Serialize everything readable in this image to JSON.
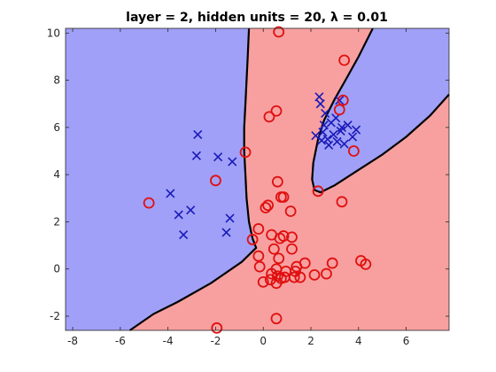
{
  "chart_data": {
    "type": "scatter",
    "title": "layer = 2, hidden units = 20, λ = 0.01",
    "xlabel": "",
    "ylabel": "",
    "xlim": [
      -8.3,
      7.8
    ],
    "ylim": [
      -2.6,
      10.2
    ],
    "xticks": [
      -8,
      -6,
      -4,
      -2,
      0,
      2,
      4,
      6
    ],
    "yticks": [
      -2,
      0,
      2,
      4,
      6,
      8,
      10
    ],
    "grid": false,
    "legend": "none",
    "colors": {
      "region_class_x": "#a0a0f8",
      "region_class_o": "#f8a0a0",
      "marker_x": "#1a1ab8",
      "marker_o": "#e01010",
      "boundary": "#000000"
    },
    "decision_boundary": {
      "left_curve": [
        [
          -0.6,
          10.2
        ],
        [
          -0.65,
          9.0
        ],
        [
          -0.7,
          8.0
        ],
        [
          -0.75,
          7.0
        ],
        [
          -0.8,
          6.0
        ],
        [
          -0.8,
          5.0
        ],
        [
          -0.75,
          4.0
        ],
        [
          -0.7,
          3.0
        ],
        [
          -0.6,
          2.0
        ],
        [
          -0.45,
          1.3
        ],
        [
          -0.3,
          0.9
        ],
        [
          -0.9,
          0.3
        ],
        [
          -2.2,
          -0.6
        ],
        [
          -3.6,
          -1.4
        ],
        [
          -4.6,
          -1.9
        ],
        [
          -5.6,
          -2.6
        ]
      ],
      "right_curve": [
        [
          4.6,
          10.2
        ],
        [
          4.0,
          9.0
        ],
        [
          3.45,
          8.0
        ],
        [
          3.0,
          7.2
        ],
        [
          2.55,
          6.3
        ],
        [
          2.3,
          5.5
        ],
        [
          2.1,
          4.5
        ],
        [
          2.05,
          3.8
        ],
        [
          2.15,
          3.35
        ],
        [
          2.4,
          3.25
        ],
        [
          3.0,
          3.55
        ],
        [
          4.0,
          4.2
        ],
        [
          5.0,
          4.85
        ],
        [
          6.0,
          5.6
        ],
        [
          7.0,
          6.5
        ],
        [
          7.8,
          7.4
        ]
      ]
    },
    "series": [
      {
        "marker": "x",
        "points": [
          [
            -2.75,
            5.7
          ],
          [
            -2.8,
            4.8
          ],
          [
            -1.9,
            4.75
          ],
          [
            -1.3,
            4.55
          ],
          [
            -3.9,
            3.2
          ],
          [
            -3.55,
            2.3
          ],
          [
            -3.05,
            2.5
          ],
          [
            -3.35,
            1.45
          ],
          [
            -1.4,
            2.15
          ],
          [
            -1.55,
            1.55
          ],
          [
            2.35,
            7.3
          ],
          [
            2.4,
            7.0
          ],
          [
            3.2,
            7.15
          ],
          [
            2.6,
            6.6
          ],
          [
            3.05,
            6.4
          ],
          [
            2.85,
            6.2
          ],
          [
            2.55,
            6.1
          ],
          [
            3.3,
            6.0
          ],
          [
            3.55,
            6.1
          ],
          [
            3.9,
            5.9
          ],
          [
            3.75,
            5.6
          ],
          [
            2.2,
            5.65
          ],
          [
            2.45,
            5.45
          ],
          [
            2.7,
            5.5
          ],
          [
            2.95,
            5.7
          ],
          [
            3.1,
            5.4
          ],
          [
            3.4,
            5.3
          ],
          [
            2.5,
            5.8
          ],
          [
            2.75,
            5.25
          ],
          [
            3.25,
            5.85
          ]
        ]
      },
      {
        "marker": "o",
        "points": [
          [
            0.65,
            10.05
          ],
          [
            3.4,
            8.85
          ],
          [
            3.35,
            7.15
          ],
          [
            3.2,
            6.75
          ],
          [
            0.55,
            6.7
          ],
          [
            0.25,
            6.45
          ],
          [
            3.8,
            5.0
          ],
          [
            -0.75,
            4.95
          ],
          [
            0.6,
            3.7
          ],
          [
            -2.0,
            3.75
          ],
          [
            2.3,
            3.3
          ],
          [
            3.3,
            2.85
          ],
          [
            -4.8,
            2.8
          ],
          [
            0.75,
            3.05
          ],
          [
            0.85,
            3.05
          ],
          [
            0.1,
            2.6
          ],
          [
            0.2,
            2.7
          ],
          [
            1.15,
            2.45
          ],
          [
            -0.2,
            1.7
          ],
          [
            0.7,
            1.3
          ],
          [
            0.35,
            1.45
          ],
          [
            0.85,
            1.4
          ],
          [
            -0.45,
            1.25
          ],
          [
            1.2,
            1.35
          ],
          [
            0.45,
            0.85
          ],
          [
            -0.2,
            0.55
          ],
          [
            0.65,
            0.45
          ],
          [
            1.2,
            0.85
          ],
          [
            -0.15,
            0.1
          ],
          [
            0.55,
            0.0
          ],
          [
            1.4,
            0.1
          ],
          [
            1.75,
            0.25
          ],
          [
            2.9,
            0.25
          ],
          [
            4.1,
            0.35
          ],
          [
            4.3,
            0.2
          ],
          [
            1.35,
            -0.1
          ],
          [
            2.15,
            -0.25
          ],
          [
            2.65,
            -0.2
          ],
          [
            0.0,
            -0.55
          ],
          [
            0.3,
            -0.45
          ],
          [
            0.6,
            -0.3
          ],
          [
            0.9,
            -0.35
          ],
          [
            1.3,
            -0.35
          ],
          [
            0.55,
            -0.6
          ],
          [
            0.75,
            -0.4
          ],
          [
            0.55,
            -2.1
          ],
          [
            -1.95,
            -2.5
          ],
          [
            0.95,
            -0.1
          ],
          [
            1.55,
            -0.35
          ],
          [
            0.35,
            -0.2
          ]
        ]
      }
    ]
  }
}
